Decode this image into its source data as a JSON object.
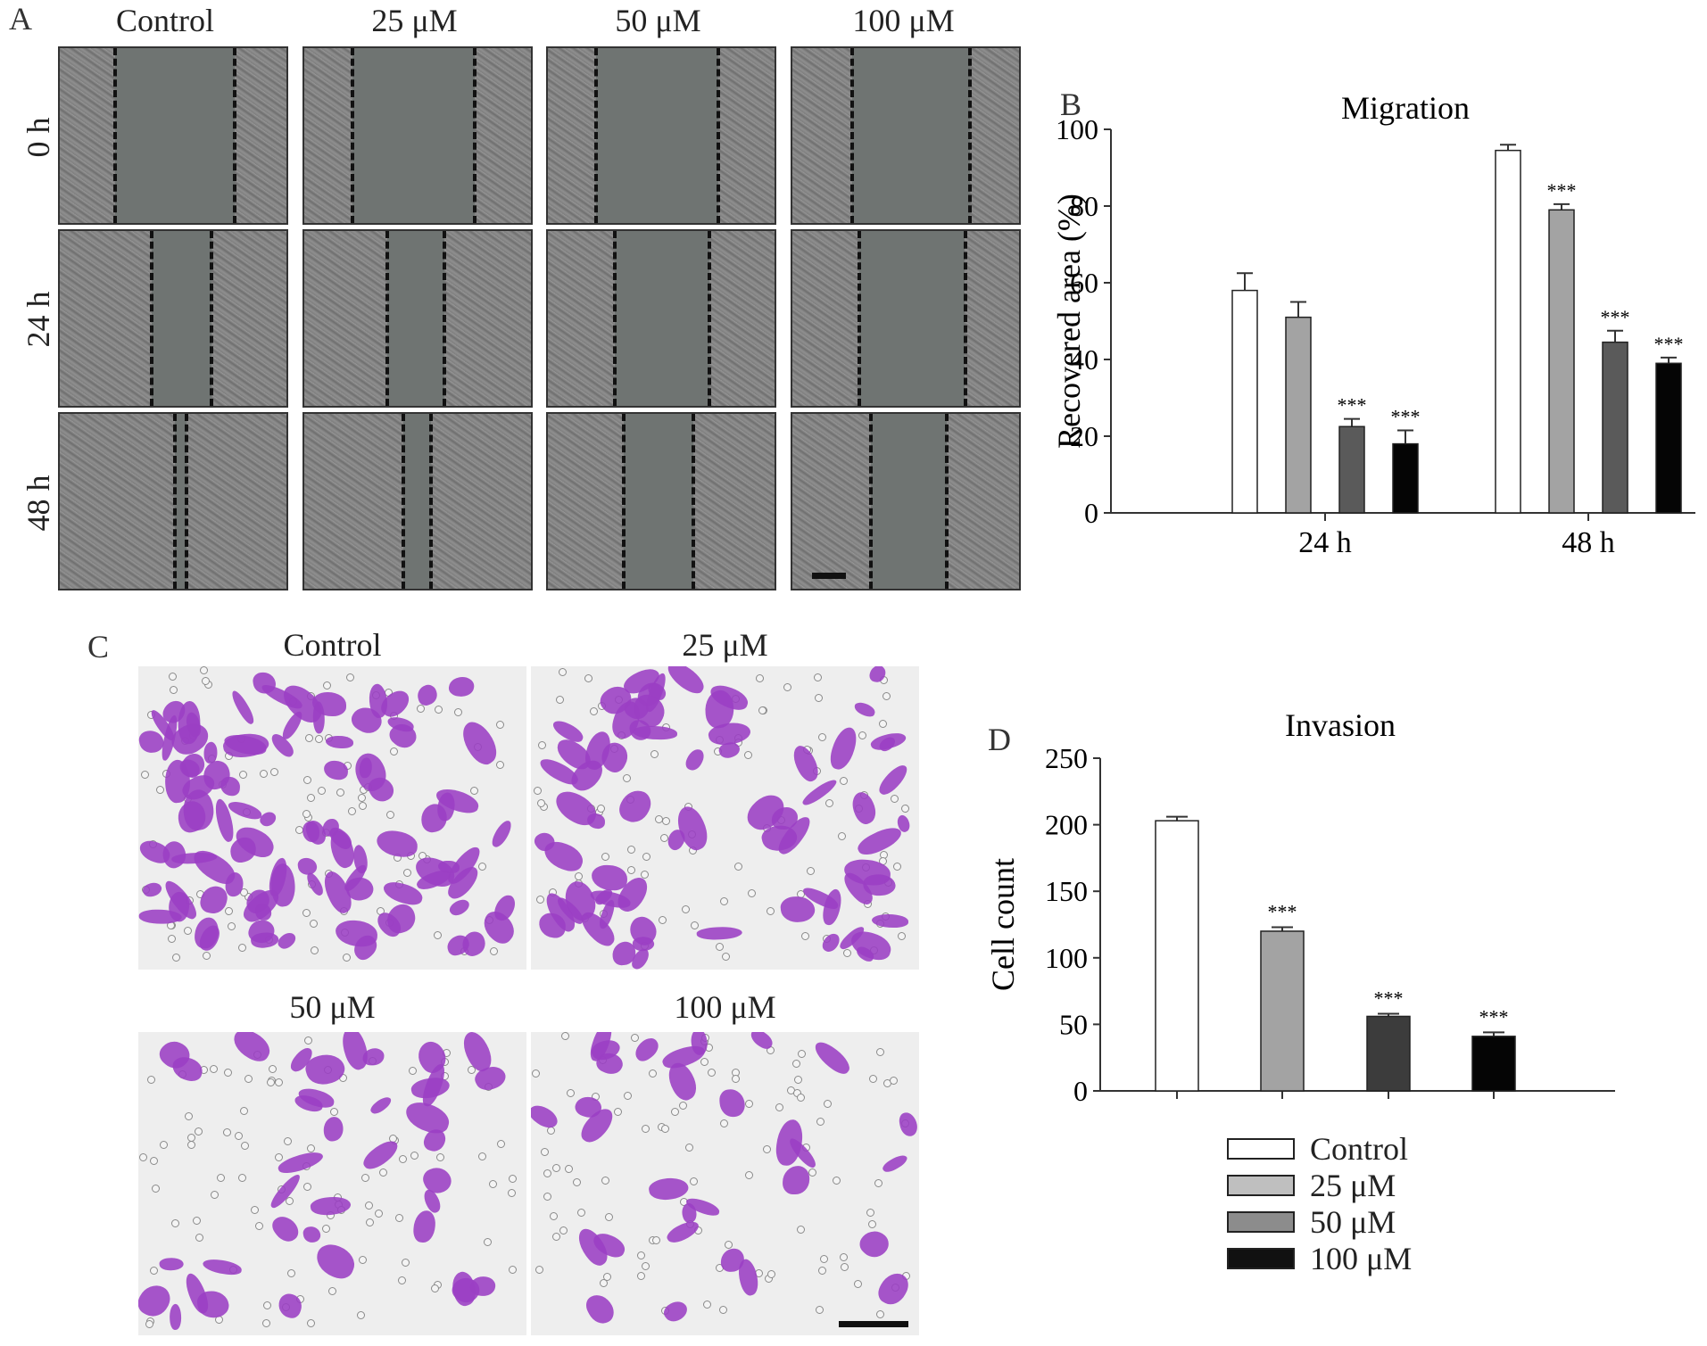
{
  "panel_a": {
    "letter": "A",
    "columns": [
      "Control",
      "25 μM",
      "50 μM",
      "100 μM"
    ],
    "rows": [
      "0 h",
      "24 h",
      "48 h"
    ]
  },
  "panel_b": {
    "letter": "B"
  },
  "panel_c": {
    "letter": "C",
    "labels": [
      "Control",
      "25 μM",
      "50 μM",
      "100 μM"
    ]
  },
  "panel_d": {
    "letter": "D"
  },
  "legend": [
    {
      "label": "Control",
      "color": "#ffffff"
    },
    {
      "label": "25 μM",
      "color": "#bfbfbf"
    },
    {
      "label": "50 μM",
      "color": "#8c8c8c"
    },
    {
      "label": "100 μM",
      "color": "#111111"
    }
  ],
  "colors": {
    "control": "#ffffff",
    "c25": "#a3a3a3",
    "c50": "#5a5a5a",
    "c100": "#050505",
    "d50": "#3c3c3c",
    "stain": "#9b3fc4"
  },
  "chart_data": [
    {
      "type": "bar",
      "title": "Migration",
      "ylabel": "Recovered area (%)",
      "xlabel": "",
      "ylim": [
        0,
        100
      ],
      "yticks": [
        0,
        20,
        40,
        60,
        80,
        100
      ],
      "categories": [
        "24 h",
        "48 h"
      ],
      "series": [
        {
          "name": "Control",
          "values": [
            58,
            94.5
          ],
          "errors": [
            4.5,
            1.5
          ],
          "sig": [
            "",
            ""
          ]
        },
        {
          "name": "25 μM",
          "values": [
            51,
            79
          ],
          "errors": [
            4,
            1.5
          ],
          "sig": [
            "",
            "***"
          ]
        },
        {
          "name": "50 μM",
          "values": [
            22.5,
            44.5
          ],
          "errors": [
            2,
            3
          ],
          "sig": [
            "***",
            "***"
          ]
        },
        {
          "name": "100 μM",
          "values": [
            18,
            39
          ],
          "errors": [
            3.5,
            1.5
          ],
          "sig": [
            "***",
            "***"
          ]
        }
      ]
    },
    {
      "type": "bar",
      "title": "Invasion",
      "ylabel": "Cell count",
      "xlabel": "",
      "ylim": [
        0,
        250
      ],
      "yticks": [
        0,
        50,
        100,
        150,
        200,
        250
      ],
      "categories": [
        "Control",
        "25 μM",
        "50 μM",
        "100 μM"
      ],
      "values": [
        203,
        120,
        56,
        41
      ],
      "errors": [
        3,
        3,
        2,
        3
      ],
      "sig": [
        "",
        "***",
        "***",
        "***"
      ]
    }
  ]
}
